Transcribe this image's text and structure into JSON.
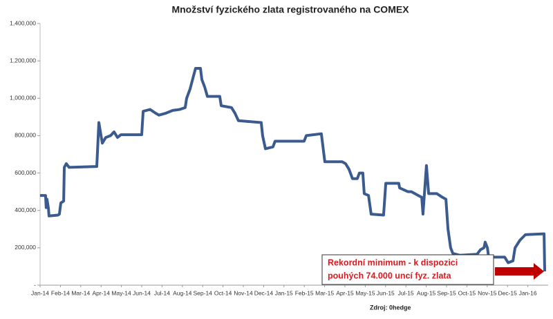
{
  "chart_data": {
    "type": "line",
    "title": "Množství fyzického zlata registrovaného na COMEX",
    "annotation": [
      "Rekordní minimum - k dispozici",
      "pouhých 74.000 uncí fyz. zlata"
    ],
    "source": "Zdroj: 0hedge",
    "grid": false,
    "xlim": [
      0,
      25
    ],
    "xticks": [
      {
        "value": 0,
        "label": "Jan-14"
      },
      {
        "value": 1,
        "label": "Feb-14"
      },
      {
        "value": 2,
        "label": "Mar-14"
      },
      {
        "value": 3,
        "label": "Apr-14"
      },
      {
        "value": 4,
        "label": "May-14"
      },
      {
        "value": 5,
        "label": "Jun-14"
      },
      {
        "value": 6,
        "label": "Jul-14"
      },
      {
        "value": 7,
        "label": "Aug-14"
      },
      {
        "value": 8,
        "label": "Sep-14"
      },
      {
        "value": 9,
        "label": "Oct-14"
      },
      {
        "value": 10,
        "label": "Nov-14"
      },
      {
        "value": 11,
        "label": "Dec-14"
      },
      {
        "value": 12,
        "label": "Jan-15"
      },
      {
        "value": 13,
        "label": "Feb-15"
      },
      {
        "value": 14,
        "label": "Mar-15"
      },
      {
        "value": 15,
        "label": "Apr-15"
      },
      {
        "value": 16,
        "label": "May-15"
      },
      {
        "value": 17,
        "label": "Jun-15"
      },
      {
        "value": 18,
        "label": "Jul-15"
      },
      {
        "value": 19,
        "label": "Aug-15"
      },
      {
        "value": 20,
        "label": "Sep-15"
      },
      {
        "value": 21,
        "label": "Oct-15"
      },
      {
        "value": 22,
        "label": "Nov-15"
      },
      {
        "value": 23,
        "label": "Dec-15"
      },
      {
        "value": 24,
        "label": "Jan-16"
      }
    ],
    "ylim": [
      0,
      1400000
    ],
    "yticks": [
      {
        "value": 0,
        "label": "-"
      },
      {
        "value": 200000,
        "label": "200,000"
      },
      {
        "value": 400000,
        "label": "400,000"
      },
      {
        "value": 600000,
        "label": "600,000"
      },
      {
        "value": 800000,
        "label": "800,000"
      },
      {
        "value": 1000000,
        "label": "1,000,000"
      },
      {
        "value": 1200000,
        "label": "1,200,000"
      },
      {
        "value": 1400000,
        "label": "1,400,000"
      }
    ],
    "x": [
      0,
      0.27,
      0.3,
      0.34,
      0.41,
      0.44,
      0.88,
      0.95,
      1.02,
      1.16,
      1.19,
      1.29,
      1.43,
      2.79,
      2.89,
      3.06,
      3.23,
      3.47,
      3.64,
      3.81,
      3.98,
      5.0,
      5.07,
      5.41,
      5.68,
      5.85,
      6.19,
      6.53,
      6.87,
      7.14,
      7.21,
      7.38,
      7.55,
      7.65,
      7.89,
      7.96,
      8.1,
      8.23,
      8.84,
      8.91,
      9.42,
      9.59,
      9.76,
      10.88,
      10.95,
      11.09,
      11.46,
      11.56,
      12.99,
      13.1,
      13.84,
      14.01,
      14.86,
      15.03,
      15.2,
      15.37,
      15.61,
      15.71,
      15.88,
      15.95,
      16.16,
      16.29,
      16.9,
      17.01,
      17.65,
      17.69,
      18.1,
      18.27,
      18.61,
      18.78,
      18.84,
      19.01,
      19.12,
      19.52,
      19.8,
      19.97,
      20.07,
      20.2,
      20.31,
      20.65,
      21.5,
      21.67,
      21.84,
      21.9,
      22.01,
      22.07,
      22.86,
      23.03,
      23.27,
      23.37,
      23.61,
      23.88,
      24.8,
      24.83
    ],
    "series": [
      {
        "color": "#3b5a8e",
        "values": [
          480000,
          480000,
          415000,
          460000,
          410000,
          370000,
          375000,
          380000,
          440000,
          450000,
          630000,
          650000,
          630000,
          635000,
          870000,
          760000,
          790000,
          800000,
          820000,
          790000,
          805000,
          805000,
          930000,
          940000,
          920000,
          910000,
          920000,
          935000,
          940000,
          950000,
          1000000,
          1050000,
          1120000,
          1160000,
          1160000,
          1100000,
          1060000,
          1010000,
          1010000,
          960000,
          950000,
          920000,
          880000,
          870000,
          800000,
          730000,
          740000,
          770000,
          770000,
          800000,
          810000,
          660000,
          660000,
          650000,
          620000,
          570000,
          570000,
          600000,
          600000,
          490000,
          480000,
          380000,
          375000,
          545000,
          545000,
          520000,
          500000,
          500000,
          480000,
          470000,
          380000,
          640000,
          490000,
          490000,
          470000,
          460000,
          300000,
          200000,
          170000,
          160000,
          165000,
          190000,
          200000,
          230000,
          200000,
          150000,
          150000,
          120000,
          130000,
          200000,
          240000,
          270000,
          275000,
          74000
        ]
      }
    ]
  }
}
